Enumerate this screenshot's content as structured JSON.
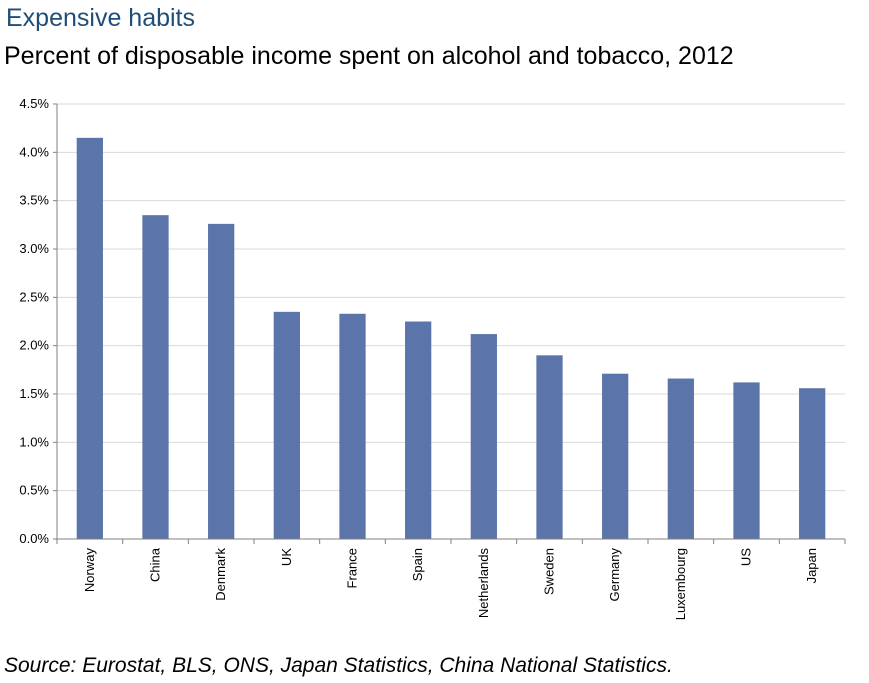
{
  "title": "Expensive habits",
  "subtitle": "Percent of disposable income spent on alcohol and tobacco, 2012",
  "source": "Source: Eurostat, BLS, ONS, Japan Statistics, China National Statistics.",
  "colors": {
    "bar": "#5b74a9",
    "grid": "#d9d9d9",
    "axis": "#808080"
  },
  "chart_data": {
    "type": "bar",
    "title": "Expensive habits",
    "subtitle": "Percent of disposable income spent on alcohol and tobacco, 2012",
    "categories": [
      "Norway",
      "China",
      "Denmark",
      "UK",
      "France",
      "Spain",
      "Netherlands",
      "Sweden",
      "Germany",
      "Luxembourg",
      "US",
      "Japan"
    ],
    "values": [
      4.15,
      3.35,
      3.26,
      2.35,
      2.33,
      2.25,
      2.12,
      1.9,
      1.71,
      1.66,
      1.62,
      1.56
    ],
    "ylim": [
      0,
      4.5
    ],
    "yticks": [
      0,
      0.5,
      1.0,
      1.5,
      2.0,
      2.5,
      3.0,
      3.5,
      4.0,
      4.5
    ],
    "ytick_labels": [
      "0.0%",
      "0.5%",
      "1.0%",
      "1.5%",
      "2.0%",
      "2.5%",
      "3.0%",
      "3.5%",
      "4.0%",
      "4.5%"
    ],
    "xlabel": "",
    "ylabel": "",
    "grid": true,
    "legend": "none"
  }
}
